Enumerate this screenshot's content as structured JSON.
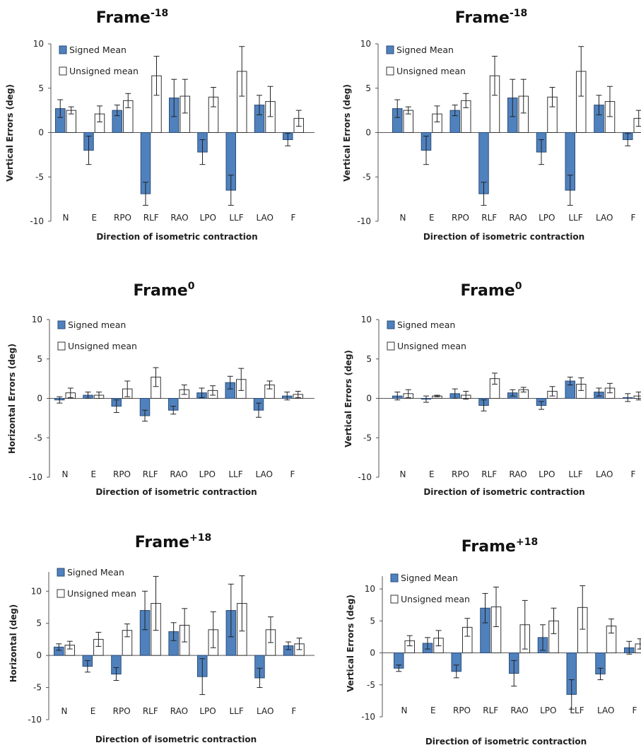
{
  "colors": {
    "signed": "#4f81bd",
    "signed_edge": "#2b4c78",
    "unsigned": "#ffffff",
    "unsigned_edge": "#333333",
    "axis": "#555555"
  },
  "chart_data": [
    {
      "type": "bar",
      "title": "Frame",
      "title_sup": "-18",
      "xlabel": "Direction of isometric contraction",
      "ylabel": "Vertical Errors (deg)",
      "ylim": [
        -10,
        10
      ],
      "yticks": [
        10,
        5,
        0,
        -5,
        -10
      ],
      "grid": false,
      "legend_position": "top-left",
      "categories": [
        "N",
        "E",
        "RPO",
        "RLF",
        "RAO",
        "LPO",
        "LLF",
        "LAO",
        "F"
      ],
      "series": [
        {
          "name": "Signed Mean",
          "values": [
            2.7,
            -2.0,
            2.5,
            -6.9,
            3.9,
            -2.2,
            -6.5,
            3.1,
            -0.8
          ],
          "errors": [
            1.0,
            1.6,
            0.6,
            1.3,
            2.1,
            1.4,
            1.7,
            1.1,
            0.7
          ]
        },
        {
          "name": "Unsigned mean",
          "values": [
            2.5,
            2.1,
            3.6,
            6.4,
            4.1,
            4.0,
            6.9,
            3.5,
            1.6
          ],
          "errors": [
            0.4,
            0.9,
            0.8,
            2.2,
            1.9,
            1.1,
            2.8,
            1.7,
            0.9
          ]
        }
      ]
    },
    {
      "type": "bar",
      "title": "Frame",
      "title_sup": "-18",
      "xlabel": "Direction of isometric contraction",
      "ylabel": "Vertical Errors (deg)",
      "ylim": [
        -10,
        10
      ],
      "yticks": [
        10,
        5,
        0,
        -5,
        -10
      ],
      "grid": false,
      "legend_position": "top-left",
      "categories": [
        "N",
        "E",
        "RPO",
        "RLF",
        "RAO",
        "LPO",
        "LLF",
        "LAO",
        "F"
      ],
      "series": [
        {
          "name": "Signed Mean",
          "values": [
            2.7,
            -2.0,
            2.5,
            -6.9,
            3.9,
            -2.2,
            -6.5,
            3.1,
            -0.8
          ],
          "errors": [
            1.0,
            1.6,
            0.6,
            1.3,
            2.1,
            1.4,
            1.7,
            1.1,
            0.7
          ]
        },
        {
          "name": "Unsigned mean",
          "values": [
            2.5,
            2.1,
            3.6,
            6.4,
            4.1,
            4.0,
            6.9,
            3.5,
            1.6
          ],
          "errors": [
            0.4,
            0.9,
            0.8,
            2.2,
            1.9,
            1.1,
            2.8,
            1.7,
            0.9
          ]
        }
      ]
    },
    {
      "type": "bar",
      "title": "Frame",
      "title_sup": "0",
      "xlabel": "Direction of isometric contraction",
      "ylabel": "Horizontal Errors (deg)",
      "ylim": [
        -10,
        10
      ],
      "yticks": [
        10,
        5,
        0,
        -5,
        -10
      ],
      "grid": false,
      "legend_position": "top-left",
      "categories": [
        "N",
        "E",
        "RPO",
        "RLF",
        "RAO",
        "LPO",
        "LLF",
        "LAO",
        "F"
      ],
      "series": [
        {
          "name": "Signed mean",
          "values": [
            -0.2,
            0.4,
            -1.0,
            -2.2,
            -1.5,
            0.7,
            2.0,
            -1.5,
            0.3
          ],
          "errors": [
            0.4,
            0.4,
            0.8,
            0.7,
            0.5,
            0.6,
            0.8,
            0.9,
            0.5
          ]
        },
        {
          "name": "Unsigned mean",
          "values": [
            0.7,
            0.4,
            1.2,
            2.7,
            1.1,
            1.0,
            2.4,
            1.7,
            0.5
          ],
          "errors": [
            0.6,
            0.4,
            1.0,
            1.2,
            0.6,
            0.6,
            1.4,
            0.5,
            0.4
          ]
        }
      ]
    },
    {
      "type": "bar",
      "title": "Frame",
      "title_sup": "0",
      "xlabel": "Direction of isometric contraction",
      "ylabel": "Vertical Errors (deg)",
      "ylim": [
        -10,
        10
      ],
      "yticks": [
        10,
        5,
        0,
        -5,
        -10
      ],
      "grid": false,
      "legend_position": "top-left",
      "categories": [
        "N",
        "E",
        "RPO",
        "RLF",
        "RAO",
        "LPO",
        "LLF",
        "LAO",
        "F"
      ],
      "series": [
        {
          "name": "Signed mean",
          "values": [
            0.3,
            -0.1,
            0.6,
            -0.9,
            0.7,
            -0.9,
            2.2,
            0.8,
            0.1
          ],
          "errors": [
            0.5,
            0.4,
            0.6,
            0.7,
            0.4,
            0.5,
            0.5,
            0.5,
            0.5
          ]
        },
        {
          "name": "Unsigned mean",
          "values": [
            0.6,
            0.3,
            0.4,
            2.5,
            1.1,
            0.9,
            1.8,
            1.3,
            0.3
          ],
          "errors": [
            0.5,
            0.1,
            0.5,
            0.7,
            0.3,
            0.6,
            0.8,
            0.6,
            0.5
          ]
        }
      ]
    },
    {
      "type": "bar",
      "title": "Frame",
      "title_sup": "+18",
      "xlabel": "Direction of isometric contraction",
      "ylabel": "Horizontal (deg)",
      "ylim": [
        -10,
        13
      ],
      "yticks": [
        10,
        5,
        0,
        -5,
        -10
      ],
      "grid": false,
      "legend_position": "top-left",
      "categories": [
        "N",
        "E",
        "RPO",
        "RLF",
        "RAO",
        "LPO",
        "LLF",
        "LAO",
        "F"
      ],
      "series": [
        {
          "name": "Signed Mean",
          "values": [
            1.3,
            -1.7,
            -2.9,
            7.0,
            3.7,
            -3.3,
            7.0,
            -3.5,
            1.5
          ],
          "errors": [
            0.5,
            0.9,
            1.0,
            3.0,
            1.4,
            2.8,
            4.1,
            1.5,
            0.6
          ]
        },
        {
          "name": "Unsigned mean",
          "values": [
            1.6,
            2.5,
            3.9,
            8.1,
            4.7,
            4.0,
            8.1,
            4.0,
            1.8
          ],
          "errors": [
            0.6,
            1.1,
            1.0,
            4.2,
            2.6,
            2.8,
            4.3,
            2.0,
            0.9
          ]
        }
      ]
    },
    {
      "type": "bar",
      "title": "Frame",
      "title_sup": "+18",
      "xlabel": "Direction of isometric contraction",
      "ylabel": "Vertical Errors (deg)",
      "ylim": [
        -10,
        12
      ],
      "yticks": [
        10,
        5,
        0,
        -5,
        -10
      ],
      "grid": false,
      "legend_position": "top-left",
      "categories": [
        "N",
        "E",
        "RPO",
        "RLF",
        "RAO",
        "LPO",
        "LLF",
        "LAO",
        "F"
      ],
      "series": [
        {
          "name": "Signed Mean",
          "values": [
            -2.4,
            1.5,
            -2.9,
            7.0,
            -3.2,
            2.4,
            -6.5,
            -3.3,
            0.8
          ],
          "errors": [
            0.5,
            0.9,
            1.0,
            2.3,
            2.0,
            2.0,
            2.3,
            0.9,
            1.0
          ]
        },
        {
          "name": "Unsigned mean",
          "values": [
            1.9,
            2.3,
            4.0,
            7.2,
            4.4,
            5.0,
            7.1,
            4.2,
            1.4
          ],
          "errors": [
            0.8,
            1.2,
            1.4,
            3.1,
            3.8,
            2.0,
            3.4,
            1.1,
            0.8
          ]
        }
      ]
    }
  ]
}
